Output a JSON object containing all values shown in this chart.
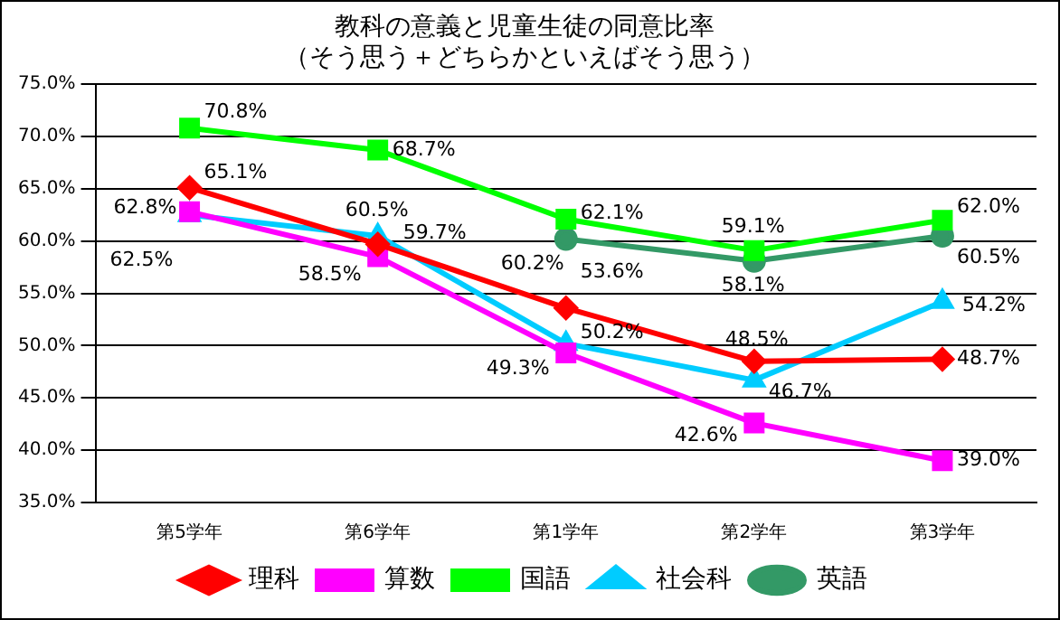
{
  "chart_data": {
    "type": "line",
    "title": "教科の意義と児童生徒の同意比率",
    "subtitle": "（そう思う＋どちらかといえばそう思う）",
    "categories": [
      "第5学年",
      "第6学年",
      "第1学年",
      "第2学年",
      "第3学年"
    ],
    "ylim": [
      35,
      75
    ],
    "yticks": [
      {
        "value": 35,
        "label": "35.0%"
      },
      {
        "value": 40,
        "label": "40.0%"
      },
      {
        "value": 45,
        "label": "45.0%"
      },
      {
        "value": 50,
        "label": "50.0%"
      },
      {
        "value": 55,
        "label": "55.0%"
      },
      {
        "value": 60,
        "label": "60.0%"
      },
      {
        "value": 65,
        "label": "65.0%"
      },
      {
        "value": 70,
        "label": "70.0%"
      },
      {
        "value": 75,
        "label": "75.0%"
      }
    ],
    "grid": "y",
    "legend": "bottom",
    "series": [
      {
        "name": "理科",
        "color": "#ff0000",
        "marker": "diamond",
        "values": [
          65.1,
          59.7,
          53.6,
          48.5,
          48.7
        ],
        "value_labels": [
          "65.1%",
          "59.7%",
          "53.6%",
          "48.5%",
          "48.7%"
        ]
      },
      {
        "name": "算数",
        "color": "#ff00ff",
        "marker": "square",
        "values": [
          62.8,
          58.5,
          49.3,
          42.6,
          39.0
        ],
        "value_labels": [
          "62.8%",
          "58.5%",
          "49.3%",
          "42.6%",
          "39.0%"
        ]
      },
      {
        "name": "国語",
        "color": "#00ff00",
        "marker": "square",
        "values": [
          70.8,
          68.7,
          62.1,
          59.1,
          62.0
        ],
        "value_labels": [
          "70.8%",
          "68.7%",
          "62.1%",
          "59.1%",
          "62.0%"
        ]
      },
      {
        "name": "社会科",
        "color": "#00ccff",
        "marker": "triangle",
        "values": [
          62.5,
          60.5,
          50.2,
          46.7,
          54.2
        ],
        "value_labels": [
          "62.5%",
          "60.5%",
          "50.2%",
          "46.7%",
          "54.2%"
        ]
      },
      {
        "name": "英語",
        "color": "#339966",
        "marker": "circle",
        "values": [
          null,
          null,
          60.2,
          58.1,
          60.5
        ],
        "value_labels": [
          null,
          null,
          "60.2%",
          "58.1%",
          "60.5%"
        ]
      }
    ]
  }
}
